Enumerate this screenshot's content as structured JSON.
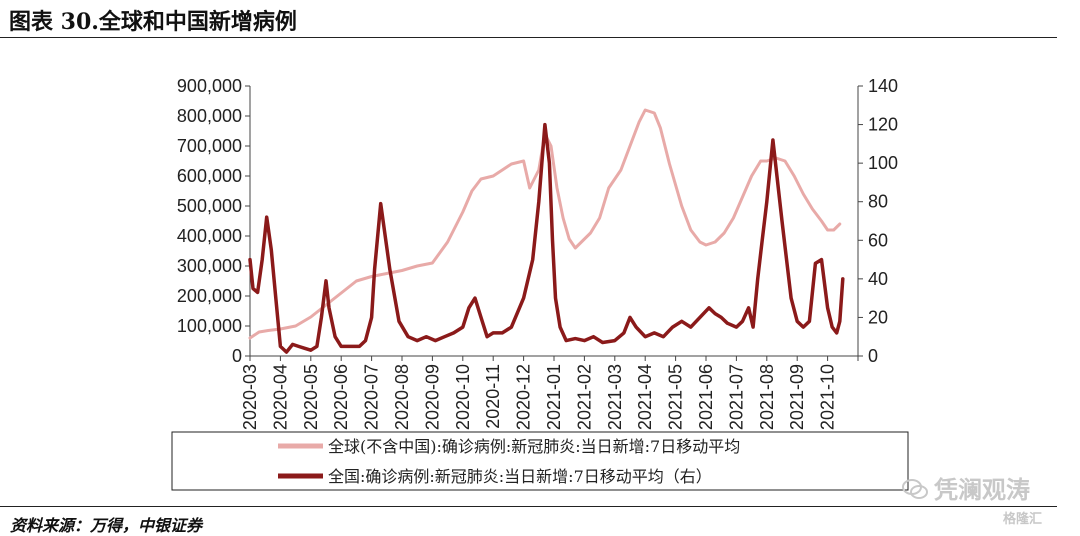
{
  "figure": {
    "title": "图表 30.全球和中国新增病例",
    "source": "资料来源：万得，中银证券",
    "watermark": "凭澜观涛",
    "corner_mark": "格隆汇"
  },
  "chart_data": {
    "type": "line",
    "title": "图表 30.全球和中国新增病例",
    "x_categories": [
      "2020-03",
      "2020-04",
      "2020-05",
      "2020-06",
      "2020-07",
      "2020-08",
      "2020-09",
      "2020-10",
      "2020-11",
      "2020-12",
      "2021-01",
      "2021-02",
      "2021-03",
      "2021-04",
      "2021-05",
      "2021-06",
      "2021-07",
      "2021-08",
      "2021-09",
      "2021-10"
    ],
    "x_labels": [
      "2020-03",
      "2020-04",
      "2020-05",
      "2020-06",
      "2020-07",
      "2020-08",
      "2020-09",
      "2020-10",
      "2020-11",
      "2020-12",
      "2021-01",
      "2021-02",
      "2021-03",
      "2021-04",
      "2021-05",
      "2021-06",
      "2021-07",
      "2021-08",
      "2021-09",
      "2021-10"
    ],
    "y_left": {
      "min": 0,
      "max": 900000,
      "ticks": [
        "0",
        "100,000",
        "200,000",
        "300,000",
        "400,000",
        "500,000",
        "600,000",
        "700,000",
        "800,000",
        "900,000"
      ]
    },
    "y_right": {
      "min": 0,
      "max": 140,
      "ticks": [
        "0",
        "20",
        "40",
        "60",
        "80",
        "100",
        "120",
        "140"
      ]
    },
    "legend_placement": "bottom, boxed",
    "series": [
      {
        "name": "全球(不含中国):确诊病例:新冠肺炎:当日新增:7日移动平均",
        "axis": "left",
        "color": "#e8aaa8",
        "x": [
          0,
          0.3,
          0.6,
          1.0,
          1.5,
          2.0,
          2.5,
          3.0,
          3.5,
          4.0,
          4.5,
          5.0,
          5.5,
          6.0,
          6.5,
          7.0,
          7.3,
          7.6,
          8.0,
          8.3,
          8.6,
          9.0,
          9.2,
          9.5,
          9.7,
          9.9,
          10.1,
          10.3,
          10.5,
          10.7,
          10.9,
          11.2,
          11.5,
          11.8,
          12.2,
          12.5,
          12.8,
          13.0,
          13.3,
          13.5,
          13.8,
          14.2,
          14.5,
          14.8,
          15.0,
          15.3,
          15.6,
          15.9,
          16.2,
          16.5,
          16.8,
          17.0,
          17.3,
          17.6,
          17.9,
          18.2,
          18.5,
          18.8,
          19.0,
          19.2,
          19.4
        ],
        "values": [
          60000,
          80000,
          85000,
          90000,
          100000,
          130000,
          170000,
          210000,
          250000,
          265000,
          275000,
          285000,
          300000,
          310000,
          380000,
          480000,
          550000,
          590000,
          600000,
          620000,
          640000,
          650000,
          560000,
          620000,
          740000,
          700000,
          560000,
          460000,
          390000,
          360000,
          380000,
          410000,
          460000,
          560000,
          620000,
          700000,
          780000,
          820000,
          810000,
          760000,
          640000,
          500000,
          420000,
          380000,
          370000,
          380000,
          410000,
          460000,
          530000,
          600000,
          650000,
          650000,
          660000,
          650000,
          600000,
          540000,
          490000,
          450000,
          420000,
          420000,
          440000
        ]
      },
      {
        "name": "全国:确诊病例:新冠肺炎:当日新增:7日移动平均（右）",
        "axis": "right",
        "color": "#8b1a1a",
        "x": [
          0,
          0.1,
          0.25,
          0.4,
          0.55,
          0.7,
          0.85,
          1.0,
          1.2,
          1.4,
          1.6,
          1.8,
          2.0,
          2.2,
          2.35,
          2.5,
          2.6,
          2.8,
          3.0,
          3.3,
          3.6,
          3.8,
          4.0,
          4.1,
          4.3,
          4.6,
          4.9,
          5.2,
          5.5,
          5.8,
          6.1,
          6.4,
          6.7,
          7.0,
          7.2,
          7.4,
          7.6,
          7.8,
          8.0,
          8.3,
          8.6,
          9.0,
          9.3,
          9.5,
          9.7,
          9.85,
          9.95,
          10.05,
          10.2,
          10.4,
          10.7,
          11.0,
          11.3,
          11.6,
          12.0,
          12.3,
          12.5,
          12.7,
          13.0,
          13.3,
          13.6,
          13.9,
          14.2,
          14.5,
          14.8,
          15.1,
          15.3,
          15.5,
          15.7,
          16.0,
          16.2,
          16.4,
          16.55,
          16.7,
          16.85,
          17.0,
          17.2,
          17.5,
          17.8,
          18.0,
          18.2,
          18.4,
          18.6,
          18.8,
          19.0,
          19.15,
          19.3,
          19.4,
          19.5
        ],
        "values": [
          50,
          35,
          33,
          50,
          72,
          55,
          30,
          5,
          2,
          6,
          5,
          4,
          3,
          5,
          20,
          39,
          25,
          10,
          5,
          5,
          5,
          8,
          20,
          45,
          79,
          45,
          18,
          10,
          8,
          10,
          8,
          10,
          12,
          15,
          25,
          30,
          20,
          10,
          12,
          12,
          15,
          30,
          50,
          80,
          120,
          100,
          60,
          30,
          15,
          8,
          9,
          8,
          10,
          7,
          8,
          12,
          20,
          15,
          10,
          12,
          10,
          15,
          18,
          15,
          20,
          25,
          22,
          20,
          17,
          15,
          18,
          25,
          15,
          40,
          60,
          80,
          112,
          70,
          30,
          18,
          15,
          18,
          48,
          50,
          25,
          15,
          12,
          18,
          40
        ]
      }
    ]
  }
}
